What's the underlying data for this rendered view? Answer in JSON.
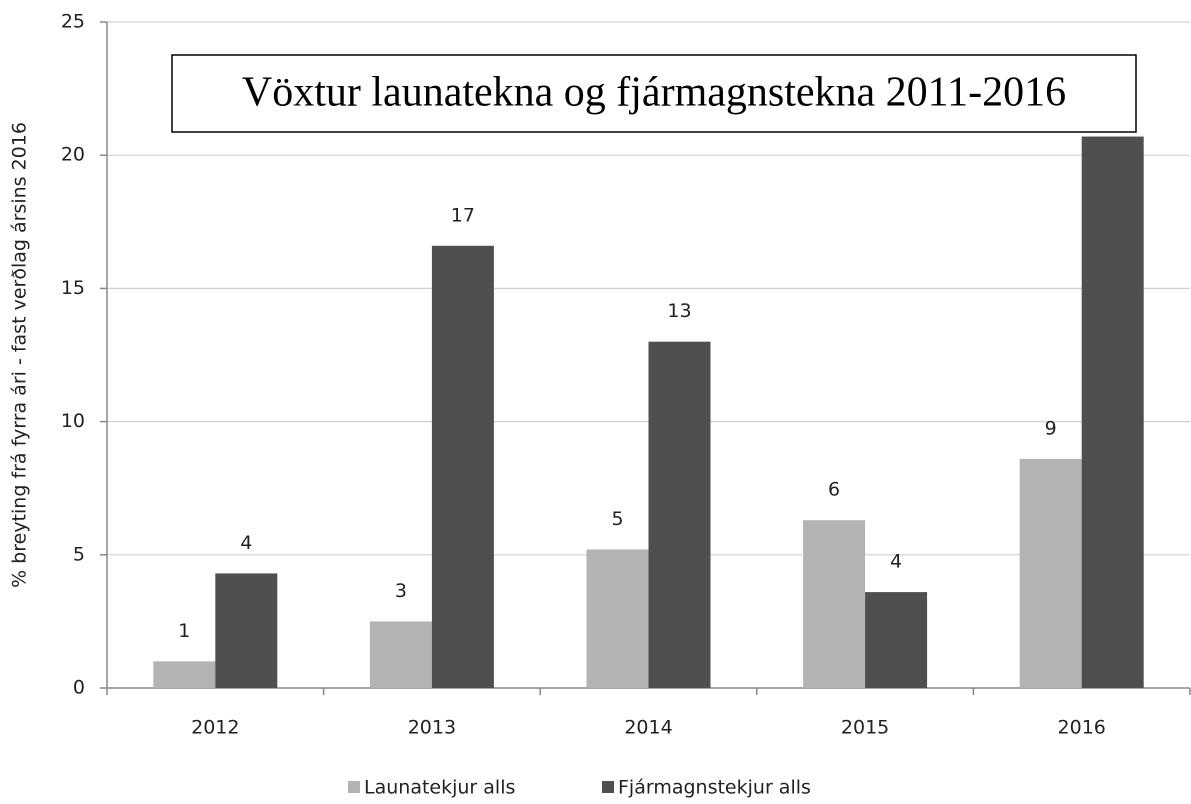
{
  "chart_data": {
    "type": "bar",
    "title": "Vöxtur launatekna og fjármagnstekna 2011-2016",
    "y_label": "% breyting frá fyrra ári - fast verðlag ársins 2016",
    "categories": [
      "2012",
      "2013",
      "2014",
      "2015",
      "2016"
    ],
    "series": [
      {
        "name": "Launatekjur alls",
        "color": "#b3b3b3",
        "values": [
          1.0,
          2.5,
          5.2,
          6.3,
          8.6
        ],
        "value_labels": [
          "1",
          "3",
          "5",
          "6",
          "9"
        ]
      },
      {
        "name": "Fjármagnstekjur alls",
        "color": "#4f4f4f",
        "values": [
          4.3,
          16.6,
          13.0,
          3.6,
          20.7
        ],
        "value_labels": [
          "4",
          "17",
          "13",
          "4",
          null
        ]
      }
    ],
    "ylim": [
      0,
      25
    ],
    "yticks": [
      0,
      5,
      10,
      15,
      20,
      25
    ],
    "grid": true,
    "legend": "bottom"
  }
}
